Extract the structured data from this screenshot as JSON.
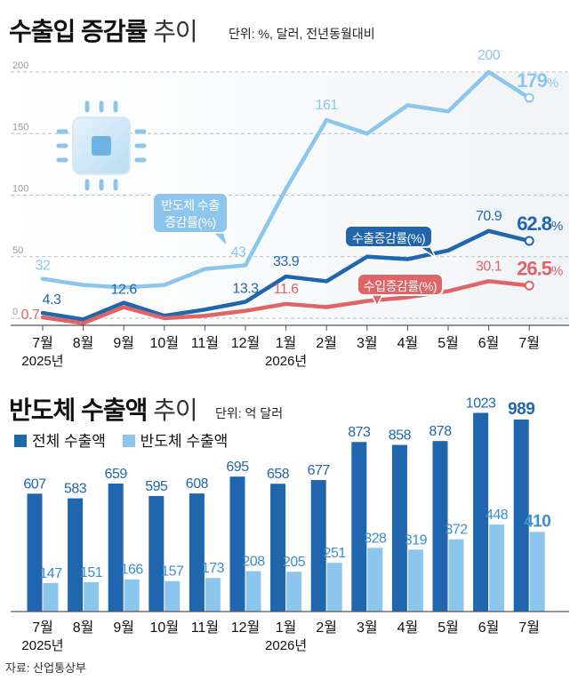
{
  "colors": {
    "semi_line": "#8dc6ec",
    "export_line": "#1f66ae",
    "import_line": "#e06466",
    "bar_total": "#1f66ae",
    "bar_semi": "#8dc6ec",
    "grid": "#bdbdbd"
  },
  "section1": {
    "title_bold": "수출입 증감률",
    "title_light": "추이",
    "unit": "단위: %, 달러, 전년동월대비"
  },
  "section2": {
    "title_bold": "반도체 수출액",
    "title_light": "추이",
    "unit": "단위: 억 달러",
    "legend_total": "전체 수출액",
    "legend_semi": "반도체 수출액"
  },
  "source": "자료: 산업통상부",
  "chart_data": [
    {
      "type": "line",
      "title": "수출입 증감률 추이",
      "unit": "단위: %, 달러, 전년동월대비",
      "categories": [
        "7월",
        "8월",
        "9월",
        "10월",
        "11월",
        "12월",
        "1월",
        "2월",
        "3월",
        "4월",
        "5월",
        "6월",
        "7월"
      ],
      "year_labels": [
        {
          "index": 0,
          "label": "2025년"
        },
        {
          "index": 6,
          "label": "2026년"
        }
      ],
      "yticks": [
        0,
        50,
        100,
        150,
        200
      ],
      "ylim": [
        -5,
        215
      ],
      "grid": true,
      "series": [
        {
          "name": "반도체 수출 증감률(%)",
          "color": "#8dc6ec",
          "values": [
            32,
            27,
            25,
            27,
            40,
            43,
            105,
            161,
            150,
            173,
            168,
            200,
            179
          ],
          "labels": [
            {
              "index": 0,
              "text": "32"
            },
            {
              "index": 5,
              "text": "43"
            },
            {
              "index": 7,
              "text": "161"
            },
            {
              "index": 11,
              "text": "200"
            },
            {
              "index": 12,
              "text": "179",
              "suffix": "%",
              "final": true
            }
          ]
        },
        {
          "name": "수출증감률(%)",
          "color": "#1f66ae",
          "values": [
            4.3,
            -1,
            12.6,
            2,
            7,
            13.3,
            33.9,
            30,
            50,
            48,
            55,
            70.9,
            62.8
          ],
          "labels": [
            {
              "index": 0,
              "text": "4.3"
            },
            {
              "index": 2,
              "text": "12.6"
            },
            {
              "index": 5,
              "text": "13.3"
            },
            {
              "index": 6,
              "text": "33.9"
            },
            {
              "index": 11,
              "text": "70.9"
            },
            {
              "index": 12,
              "text": "62.8",
              "suffix": "%",
              "final": true
            }
          ]
        },
        {
          "name": "수입증감률(%)",
          "color": "#e06466",
          "values": [
            0.7,
            -4,
            9,
            0,
            2,
            6,
            11.6,
            9,
            14,
            17,
            22,
            30.1,
            26.5
          ],
          "labels": [
            {
              "index": 0,
              "text": "0.7"
            },
            {
              "index": 6,
              "text": "11.6"
            },
            {
              "index": 11,
              "text": "30.1"
            },
            {
              "index": 12,
              "text": "26.5",
              "suffix": "%",
              "final": true
            }
          ]
        }
      ],
      "callouts": {
        "semi": [
          "반도체 수출",
          "증감률(%)"
        ],
        "export": "수출증감률(%)",
        "import": "수입증감률(%)"
      }
    },
    {
      "type": "bar",
      "title": "반도체 수출액 추이",
      "unit": "단위: 억 달러",
      "categories": [
        "7월",
        "8월",
        "9월",
        "10월",
        "11월",
        "12월",
        "1월",
        "2월",
        "3월",
        "4월",
        "5월",
        "6월",
        "7월"
      ],
      "year_labels": [
        {
          "index": 0,
          "label": "2025년"
        },
        {
          "index": 6,
          "label": "2026년"
        }
      ],
      "ylim": [
        0,
        1030
      ],
      "series": [
        {
          "name": "전체 수출액",
          "color": "#1f66ae",
          "values": [
            607,
            583,
            659,
            595,
            608,
            695,
            658,
            677,
            873,
            858,
            878,
            1023,
            989
          ]
        },
        {
          "name": "반도체 수출액",
          "color": "#8dc6ec",
          "values": [
            147,
            151,
            166,
            157,
            173,
            208,
            205,
            251,
            328,
            319,
            372,
            448,
            410
          ]
        }
      ]
    }
  ]
}
